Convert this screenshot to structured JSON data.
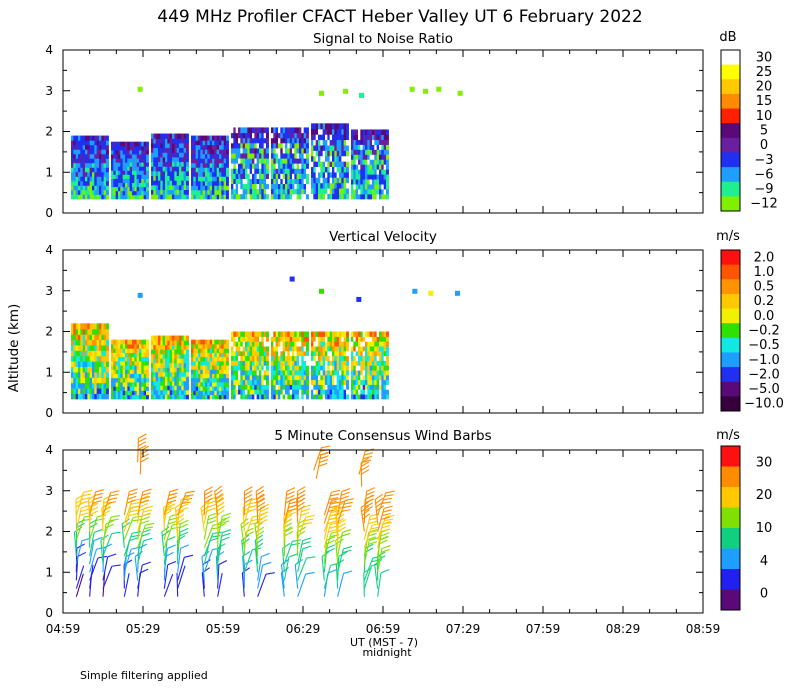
{
  "title": "449 MHz Profiler CFACT Heber Valley UT  6 February 2022",
  "footnote": "Simple filtering applied",
  "y_axis_label": "Altitude (km)",
  "x_axis_label": "UT  (MST - 7)",
  "midnight_label": "midnight",
  "chart_data": [
    {
      "type": "heatmap",
      "title": "Signal to Noise Ratio",
      "unit": "dB",
      "ylim": [
        0,
        4
      ],
      "yticks": [
        "0",
        "1",
        "2",
        "3",
        "4"
      ],
      "xticks": [
        "04:59",
        "05:29",
        "05:59",
        "06:29",
        "06:59",
        "07:29",
        "07:59",
        "08:29",
        "08:59"
      ],
      "colorbar_labels": [
        "30",
        "25",
        "20",
        "15",
        "10",
        "5",
        "0",
        "−3",
        "−6",
        "−9",
        "−12"
      ],
      "colors": [
        "#ffffff",
        "#ffff00",
        "#ffc800",
        "#ff8c00",
        "#ff2000",
        "#5a0a78",
        "#6a1fa0",
        "#2030f0",
        "#1e9fff",
        "#1ef090",
        "#7ff000"
      ],
      "segments": [
        {
          "start": "05:02",
          "end": "05:16",
          "bottom": 0.35,
          "top": 1.9
        },
        {
          "start": "05:17",
          "end": "05:31",
          "bottom": 0.35,
          "top": 1.75
        },
        {
          "start": "05:32",
          "end": "05:46",
          "bottom": 0.35,
          "top": 1.95
        },
        {
          "start": "05:47",
          "end": "06:01",
          "bottom": 0.35,
          "top": 1.9
        },
        {
          "start": "06:02",
          "end": "06:16",
          "bottom": 0.35,
          "top": 2.1
        },
        {
          "start": "06:17",
          "end": "06:31",
          "bottom": 0.35,
          "top": 2.1
        },
        {
          "start": "06:32",
          "end": "06:46",
          "bottom": 0.35,
          "top": 2.2
        },
        {
          "start": "06:47",
          "end": "07:01",
          "bottom": 0.35,
          "top": 2.05
        }
      ]
    },
    {
      "type": "heatmap",
      "title": "Vertical Velocity",
      "unit": "m/s",
      "ylim": [
        0,
        4
      ],
      "yticks": [
        "0",
        "1",
        "2",
        "3",
        "4"
      ],
      "xticks": [
        "04:59",
        "05:29",
        "05:59",
        "06:29",
        "06:59",
        "07:29",
        "07:59",
        "08:29",
        "08:59"
      ],
      "colorbar_labels": [
        "2.0",
        "1.0",
        "0.5",
        "0.2",
        "0.0",
        "−0.2",
        "−0.5",
        "−1.0",
        "−2.0",
        "−5.0",
        "−10.0"
      ],
      "colors": [
        "#ff1010",
        "#ff5500",
        "#ff9400",
        "#ffc800",
        "#f0f000",
        "#30e000",
        "#10e8e0",
        "#1e9fff",
        "#2030f0",
        "#5a0a78",
        "#35003c"
      ],
      "segments": [
        {
          "start": "05:02",
          "end": "05:16",
          "bottom": 0.35,
          "top": 2.2
        },
        {
          "start": "05:17",
          "end": "05:31",
          "bottom": 0.35,
          "top": 1.8
        },
        {
          "start": "05:32",
          "end": "05:46",
          "bottom": 0.35,
          "top": 1.9
        },
        {
          "start": "05:47",
          "end": "06:01",
          "bottom": 0.35,
          "top": 1.8
        },
        {
          "start": "06:02",
          "end": "06:16",
          "bottom": 0.35,
          "top": 2.0
        },
        {
          "start": "06:17",
          "end": "06:31",
          "bottom": 0.35,
          "top": 2.0
        },
        {
          "start": "06:32",
          "end": "06:46",
          "bottom": 0.35,
          "top": 2.0
        },
        {
          "start": "06:47",
          "end": "07:01",
          "bottom": 0.35,
          "top": 2.0
        }
      ]
    },
    {
      "type": "scatter",
      "title": "5 Minute Consensus Wind Barbs",
      "unit": "m/s",
      "ylim": [
        0,
        4
      ],
      "yticks": [
        "0",
        "1",
        "2",
        "3",
        "4"
      ],
      "xticks": [
        "04:59",
        "05:29",
        "05:59",
        "06:29",
        "06:59",
        "07:29",
        "07:59",
        "08:29",
        "08:59"
      ],
      "colorbar_labels": [
        "30",
        "20",
        "10",
        "4",
        "0"
      ],
      "colors": [
        "#ff1010",
        "#ff8c00",
        "#ffc800",
        "#80e000",
        "#10d080",
        "#1e9fff",
        "#2020f0",
        "#5a0a78"
      ],
      "barb_heights_km": [
        0.4,
        0.6,
        0.8,
        1.0,
        1.2,
        1.4,
        1.6,
        1.8,
        2.0,
        2.2,
        2.4
      ],
      "columns": [
        {
          "time": "05:04",
          "speeds": [
            1,
            2,
            3,
            3,
            5,
            6,
            8,
            11,
            14,
            17,
            18
          ]
        },
        {
          "time": "05:09",
          "speeds": [
            2,
            2,
            3,
            4,
            5,
            7,
            9,
            12,
            15,
            17,
            19
          ]
        },
        {
          "time": "05:14",
          "speeds": [
            1,
            3,
            3,
            4,
            6,
            7,
            10,
            12,
            16,
            18,
            20
          ]
        },
        {
          "time": "05:22",
          "speeds": [
            2,
            3,
            4,
            5,
            6,
            8,
            9,
            12,
            15,
            17,
            20
          ]
        },
        {
          "time": "05:27",
          "speeds": [
            3,
            3,
            4,
            4,
            6,
            8,
            10,
            13,
            16,
            18,
            20
          ]
        },
        {
          "time": "05:37",
          "speeds": [
            2,
            3,
            4,
            5,
            6,
            8,
            11,
            13,
            15,
            18,
            19
          ]
        },
        {
          "time": "05:42",
          "speeds": [
            2,
            2,
            3,
            5,
            7,
            9,
            11,
            14,
            16,
            18,
            21
          ]
        },
        {
          "time": "05:52",
          "speeds": [
            3,
            3,
            4,
            5,
            7,
            9,
            11,
            13,
            16,
            18,
            20
          ]
        },
        {
          "time": "05:57",
          "speeds": [
            2,
            3,
            4,
            6,
            7,
            9,
            11,
            13,
            15,
            18,
            20
          ]
        },
        {
          "time": "06:07",
          "speeds": [
            3,
            4,
            5,
            6,
            8,
            10,
            12,
            14,
            16,
            18,
            20
          ]
        },
        {
          "time": "06:12",
          "speeds": [
            3,
            4,
            5,
            6,
            8,
            10,
            12,
            14,
            17,
            19,
            21
          ]
        },
        {
          "time": "06:22",
          "speeds": [
            4,
            5,
            6,
            7,
            9,
            11,
            13,
            15,
            17,
            19,
            21
          ]
        },
        {
          "time": "06:27",
          "speeds": [
            4,
            5,
            6,
            7,
            9,
            11,
            13,
            15,
            17,
            19,
            21
          ]
        },
        {
          "time": "06:37",
          "speeds": [
            5,
            6,
            7,
            8,
            10,
            12,
            14,
            16,
            18,
            20,
            22
          ]
        },
        {
          "time": "06:42",
          "speeds": [
            5,
            6,
            7,
            9,
            10,
            12,
            14,
            16,
            18,
            20,
            22
          ]
        },
        {
          "time": "06:52",
          "speeds": [
            6,
            7,
            8,
            9,
            11,
            13,
            15,
            17,
            19,
            21,
            22
          ]
        },
        {
          "time": "06:57",
          "speeds": [
            6,
            7,
            8,
            10,
            11,
            13,
            15,
            17,
            19,
            21,
            23
          ]
        }
      ],
      "upper_barbs": [
        {
          "time": "05:27",
          "height": 3.7,
          "speed": 22
        },
        {
          "time": "05:28",
          "height": 3.4,
          "speed": 21
        },
        {
          "time": "06:33",
          "height": 3.5,
          "speed": 21
        },
        {
          "time": "06:34",
          "height": 3.3,
          "speed": 22
        },
        {
          "time": "06:50",
          "height": 3.4,
          "speed": 22
        },
        {
          "time": "06:51",
          "height": 3.1,
          "speed": 21
        }
      ]
    }
  ]
}
